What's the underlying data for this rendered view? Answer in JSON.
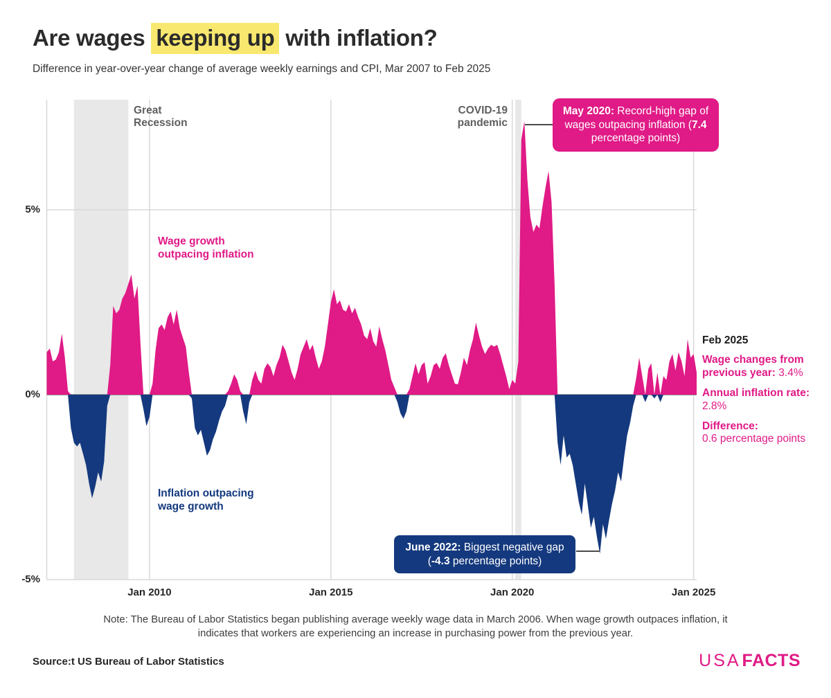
{
  "header": {
    "title_pre": "Are wages ",
    "title_highlight": "keeping up",
    "title_post": " with inflation?",
    "subtitle": "Difference in year-over-year change of average weekly earnings and CPI, Mar 2007 to Feb 2025"
  },
  "colors": {
    "pink": "#e01a86",
    "navy": "#14397e",
    "highlight_yellow": "#f9e86f",
    "band_gray": "#e8e8e8",
    "grid": "#d8d8d8",
    "zero_line": "#999999",
    "leader_line": "#4a4a4a"
  },
  "chart_data": {
    "type": "area",
    "title": "Are wages keeping up with inflation?",
    "subtitle": "Difference in year-over-year change of average weekly earnings and CPI, Mar 2007 to Feb 2025",
    "unit": "percentage points (wage growth YoY minus CPI YoY)",
    "x_start": "2007-03",
    "x_end": "2025-02",
    "x_interval": "monthly",
    "ylim": [
      -5,
      8
    ],
    "grid": true,
    "y_ticks": [
      {
        "value": 5,
        "label": "5%"
      },
      {
        "value": 0,
        "label": "0%"
      },
      {
        "value": -5,
        "label": "-5%"
      }
    ],
    "x_ticks": [
      {
        "month_index": 34,
        "label": "Jan 2010"
      },
      {
        "month_index": 94,
        "label": "Jan 2015"
      },
      {
        "month_index": 154,
        "label": "Jan 2020"
      },
      {
        "month_index": 214,
        "label": "Jan 2025"
      }
    ],
    "bands": [
      {
        "label": "Great Recession",
        "start_index": 9,
        "end_index": 27
      },
      {
        "label": "COVID-19 pandemic",
        "start_index": 155,
        "end_index": 157
      }
    ],
    "series_positive_label": "Wage growth outpacing inflation",
    "series_negative_label": "Inflation outpacing wage growth",
    "values": [
      1.15,
      1.25,
      0.9,
      0.95,
      1.15,
      1.65,
      1.0,
      0.1,
      -0.9,
      -1.3,
      -1.4,
      -1.3,
      -1.6,
      -1.9,
      -2.4,
      -2.8,
      -2.5,
      -2.1,
      -2.35,
      -1.8,
      -0.3,
      0.8,
      2.4,
      2.2,
      2.3,
      2.6,
      2.75,
      3.0,
      3.25,
      2.6,
      2.95,
      1.4,
      -0.4,
      -0.85,
      -0.6,
      0.3,
      1.2,
      1.8,
      1.9,
      1.75,
      2.1,
      2.25,
      1.9,
      2.3,
      1.8,
      1.55,
      1.3,
      0.6,
      -0.1,
      -0.9,
      -1.1,
      -0.95,
      -1.3,
      -1.65,
      -1.5,
      -1.2,
      -1.0,
      -0.7,
      -0.45,
      -0.3,
      0.1,
      0.3,
      0.55,
      0.4,
      0.1,
      -0.45,
      -0.8,
      -0.2,
      0.4,
      0.65,
      0.4,
      0.3,
      0.7,
      0.85,
      0.75,
      0.5,
      0.8,
      1.0,
      1.35,
      1.2,
      0.9,
      0.6,
      0.4,
      0.7,
      1.1,
      1.3,
      1.5,
      1.2,
      1.35,
      1.0,
      0.7,
      0.9,
      1.3,
      1.9,
      2.5,
      2.85,
      2.45,
      2.55,
      2.3,
      2.25,
      2.45,
      2.2,
      2.35,
      2.1,
      1.9,
      1.6,
      1.5,
      1.8,
      1.45,
      1.3,
      1.85,
      1.5,
      1.2,
      0.8,
      0.4,
      0.2,
      -0.2,
      -0.5,
      -0.65,
      -0.45,
      0.15,
      0.5,
      0.85,
      0.55,
      0.8,
      0.88,
      0.3,
      0.5,
      0.8,
      0.86,
      0.7,
      1.0,
      1.12,
      0.8,
      0.55,
      0.3,
      0.28,
      0.6,
      1.0,
      0.8,
      1.2,
      1.5,
      1.95,
      1.6,
      1.3,
      1.1,
      1.25,
      1.35,
      1.3,
      1.35,
      1.1,
      0.8,
      0.5,
      0.15,
      0.4,
      0.3,
      0.9,
      6.9,
      7.4,
      5.8,
      4.8,
      4.4,
      4.6,
      4.5,
      5.1,
      5.6,
      6.05,
      5.2,
      3.0,
      -1.3,
      -1.9,
      -1.1,
      -1.7,
      -1.6,
      -1.9,
      -2.4,
      -2.9,
      -3.25,
      -2.4,
      -3.0,
      -3.6,
      -3.3,
      -3.85,
      -4.3,
      -3.5,
      -3.9,
      -3.4,
      -2.95,
      -2.6,
      -2.1,
      -2.35,
      -1.7,
      -1.1,
      -0.75,
      -0.3,
      0.45,
      1.0,
      0.5,
      -0.2,
      0.7,
      0.85,
      -0.1,
      0.6,
      -0.2,
      0.5,
      0.4,
      0.9,
      1.1,
      0.65,
      1.15,
      0.9,
      0.5,
      1.5,
      1.0,
      1.1,
      0.6
    ],
    "annotations": [
      {
        "date": "May 2020",
        "value": 7.4,
        "text": "Record-high gap of wages outpacing inflation (7.4 percentage points)"
      },
      {
        "date": "June 2022",
        "value": -4.3,
        "text": "Biggest negative gap (-4.3 percentage points)"
      }
    ]
  },
  "callout_may": {
    "lead": "May 2020:",
    "text_a": " Record-high gap of wages outpacing inflation (",
    "value": "7.4",
    "text_b": " percentage points)"
  },
  "callout_june": {
    "lead": "June 2022:",
    "text_a": " Biggest negative gap (",
    "value": "-4.3",
    "text_b": " percentage points)"
  },
  "panel": {
    "heading": "Feb 2025",
    "wage_label": "Wage changes from previous year:",
    "wage_value": " 3.4%",
    "inflation_label": "Annual inflation rate:",
    "inflation_value": " 2.8%",
    "difference_label": "Difference:",
    "difference_value": "0.6 percentage points"
  },
  "footer": {
    "note": "Note: The Bureau of Labor Statistics began publishing average weekly wage data in March 2006. When wage growth outpaces inflation, it indicates that workers are experiencing an increase in purchasing power from the previous year.",
    "source": "Source:t US Bureau of Labor Statistics",
    "logo_usa": "USA",
    "logo_facts": "FACTS"
  }
}
